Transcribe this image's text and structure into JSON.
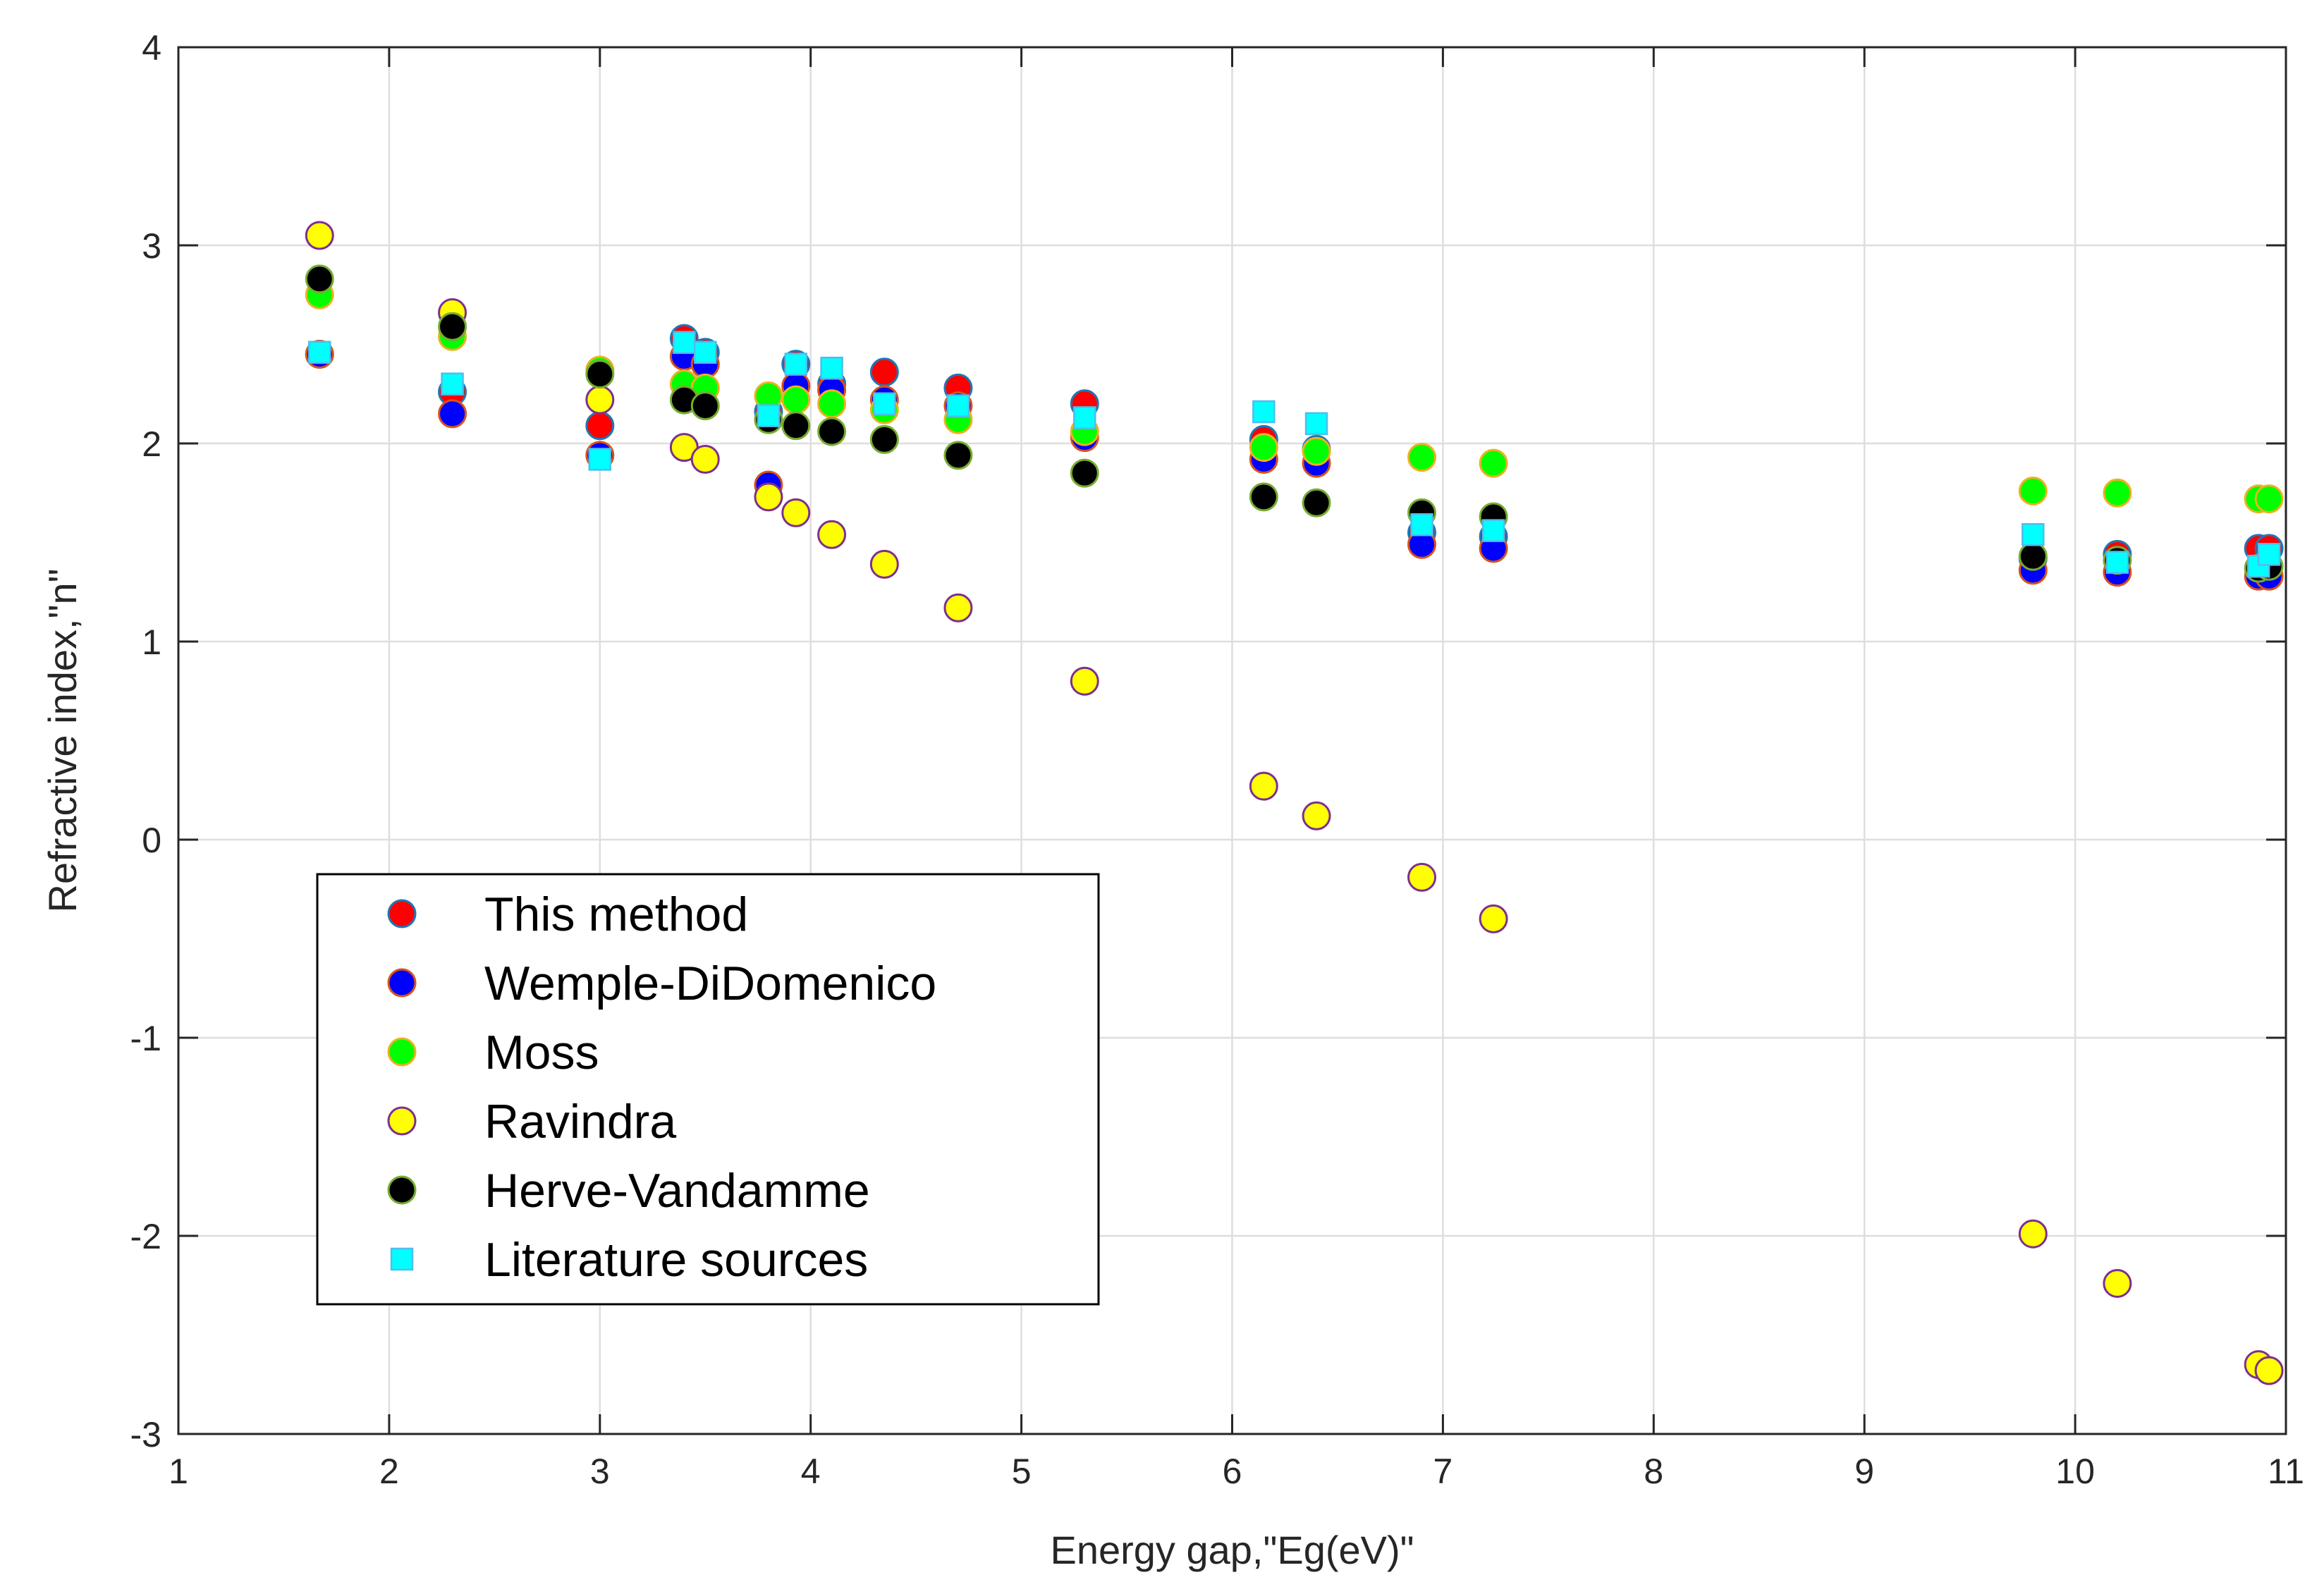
{
  "chart_data": {
    "type": "scatter",
    "title": "",
    "xlabel": "Energy gap,\"Eg(eV)\"",
    "ylabel": "Refractive index,\"n\"",
    "xlim": [
      1,
      11
    ],
    "ylim": [
      -3,
      4
    ],
    "xticks": [
      "1",
      "2",
      "3",
      "4",
      "5",
      "6",
      "7",
      "8",
      "9",
      "10",
      "11"
    ],
    "yticks": [
      "-3",
      "-2",
      "-1",
      "0",
      "1",
      "2",
      "3",
      "4"
    ],
    "grid": true,
    "legend_position": "lower-left",
    "series": [
      {
        "name": "This method",
        "marker": "circle",
        "fill": "#ff0000",
        "edge": "#1f77b4",
        "x": [
          1.67,
          2.3,
          3.0,
          3.4,
          3.5,
          3.8,
          3.93,
          4.1,
          4.35,
          4.7,
          5.3,
          6.15,
          6.4,
          6.9,
          7.24,
          9.8,
          10.2,
          10.87,
          10.92
        ],
        "y": [
          2.45,
          2.26,
          2.09,
          2.53,
          2.46,
          2.16,
          2.4,
          2.3,
          2.36,
          2.28,
          2.2,
          2.02,
          1.97,
          1.55,
          1.53,
          1.42,
          1.44,
          1.47,
          1.47
        ]
      },
      {
        "name": "Wemple-DiDomenico",
        "marker": "circle",
        "fill": "#0000ff",
        "edge": "#d95319",
        "x": [
          1.67,
          2.3,
          3.0,
          3.4,
          3.5,
          3.8,
          3.93,
          4.1,
          4.35,
          4.7,
          5.3,
          6.15,
          6.4,
          6.9,
          7.24,
          9.8,
          10.2,
          10.87,
          10.92
        ],
        "y": [
          2.45,
          2.15,
          1.94,
          2.44,
          2.4,
          1.79,
          2.29,
          2.27,
          2.22,
          2.19,
          2.03,
          1.92,
          1.9,
          1.49,
          1.47,
          1.36,
          1.35,
          1.33,
          1.33
        ]
      },
      {
        "name": "Moss",
        "marker": "circle",
        "fill": "#00ff00",
        "edge": "#edb120",
        "x": [
          1.67,
          2.3,
          3.0,
          3.4,
          3.5,
          3.8,
          3.93,
          4.1,
          4.35,
          4.7,
          5.3,
          6.15,
          6.4,
          6.9,
          7.24,
          9.8,
          10.2,
          10.87,
          10.92
        ],
        "y": [
          2.75,
          2.54,
          2.37,
          2.3,
          2.28,
          2.24,
          2.22,
          2.2,
          2.17,
          2.12,
          2.06,
          1.98,
          1.96,
          1.93,
          1.9,
          1.76,
          1.75,
          1.72,
          1.72
        ]
      },
      {
        "name": "Ravindra",
        "marker": "circle",
        "fill": "#ffff00",
        "edge": "#7e2f8e",
        "x": [
          1.67,
          2.3,
          3.0,
          3.4,
          3.5,
          3.8,
          3.93,
          4.1,
          4.35,
          4.7,
          5.3,
          6.15,
          6.4,
          6.9,
          7.24,
          9.8,
          10.2,
          10.87,
          10.92
        ],
        "y": [
          3.05,
          2.66,
          2.22,
          1.98,
          1.92,
          1.73,
          1.65,
          1.54,
          1.39,
          1.17,
          0.8,
          0.27,
          0.12,
          -0.19,
          -0.4,
          -1.99,
          -2.24,
          -2.65,
          -2.68
        ]
      },
      {
        "name": "Herve-Vandamme",
        "marker": "circle",
        "fill": "#000000",
        "edge": "#77ac30",
        "x": [
          1.67,
          2.3,
          3.0,
          3.4,
          3.5,
          3.8,
          3.93,
          4.1,
          4.35,
          4.7,
          5.3,
          6.15,
          6.4,
          6.9,
          7.24,
          9.8,
          10.2,
          10.87,
          10.92
        ],
        "y": [
          2.83,
          2.59,
          2.35,
          2.22,
          2.19,
          2.12,
          2.09,
          2.06,
          2.02,
          1.94,
          1.85,
          1.73,
          1.7,
          1.65,
          1.63,
          1.43,
          1.41,
          1.37,
          1.38
        ]
      },
      {
        "name": "Literature sources",
        "marker": "square",
        "fill": "#00ffff",
        "edge": "#4dbeee",
        "x": [
          1.67,
          2.3,
          3.0,
          3.4,
          3.5,
          3.8,
          3.93,
          4.1,
          4.35,
          4.7,
          5.3,
          6.15,
          6.4,
          6.9,
          7.24,
          9.8,
          10.2,
          10.87,
          10.92
        ],
        "y": [
          2.46,
          2.3,
          1.92,
          2.51,
          2.46,
          2.14,
          2.4,
          2.38,
          2.2,
          2.19,
          2.13,
          2.16,
          2.1,
          1.59,
          1.56,
          1.54,
          1.4,
          1.38,
          1.44
        ]
      }
    ]
  }
}
